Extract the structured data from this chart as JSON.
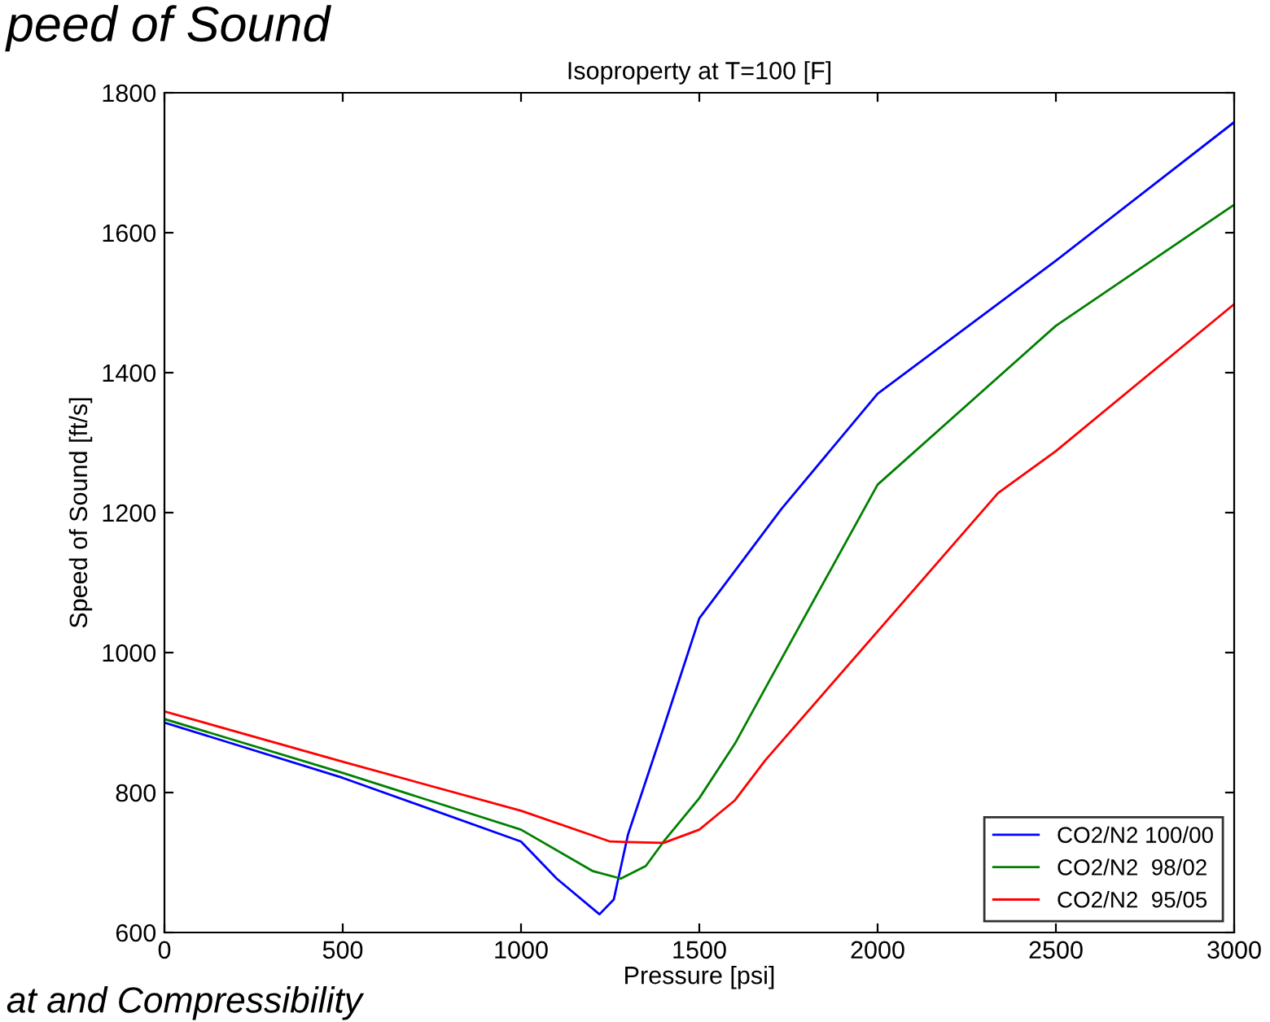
{
  "chart_data": {
    "type": "line",
    "title": "Isoproperty at T=100 [F]",
    "xlabel": "Pressure [psi]",
    "ylabel": "Speed of Sound [ft/s]",
    "xlim": [
      0,
      3000
    ],
    "xticks": [
      0,
      500,
      1000,
      1500,
      2000,
      2500,
      3000
    ],
    "ylim": [
      600,
      1800
    ],
    "yticks": [
      600,
      800,
      1000,
      1200,
      1400,
      1600,
      1800
    ],
    "grid": false,
    "legend": "bottom right",
    "line_style": "solid",
    "marker": "none",
    "annotations": [
      "peed of Sound",
      "at and Compressibility"
    ],
    "series": [
      {
        "name": "CO2/N2 100/00",
        "color": "#0000ff",
        "x": [
          0,
          500,
          1000,
          1100,
          1220,
          1260,
          1300,
          1400,
          1500,
          1730,
          2000,
          2500,
          3000
        ],
        "values": [
          900,
          821,
          730,
          677,
          626,
          647,
          740,
          893,
          1049,
          1205,
          1370,
          1560,
          1758
        ]
      },
      {
        "name": "CO2/N2  98/02",
        "color": "#008000",
        "x": [
          0,
          500,
          1000,
          1200,
          1280,
          1350,
          1400,
          1500,
          1600,
          1700,
          2000,
          2500,
          3000
        ],
        "values": [
          905,
          828,
          747,
          688,
          677,
          695,
          730,
          792,
          870,
          963,
          1240,
          1467,
          1640
        ]
      },
      {
        "name": "CO2/N2  95/05",
        "color": "#ff0000",
        "x": [
          0,
          500,
          1000,
          1250,
          1400,
          1500,
          1600,
          1685,
          2338,
          2500,
          3000
        ],
        "values": [
          916,
          844,
          774,
          730,
          728,
          747,
          789,
          846,
          1228,
          1288,
          1498
        ]
      }
    ]
  }
}
